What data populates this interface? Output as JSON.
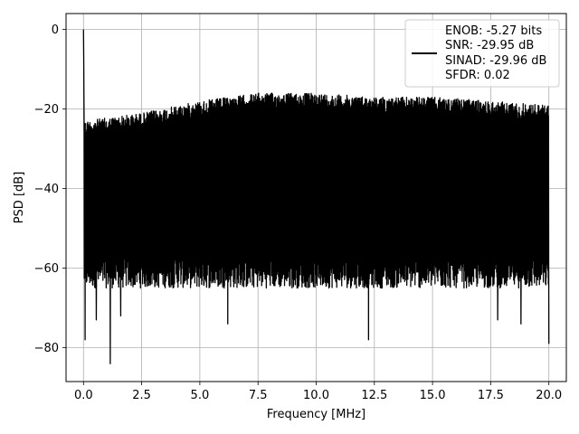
{
  "chart_data": {
    "type": "line",
    "title": "",
    "xlabel": "Frequency [MHz]",
    "ylabel": "PSD [dB]",
    "xlim": [
      -0.75,
      20.75
    ],
    "ylim": [
      -88.5,
      4.0
    ],
    "x_ticks": [
      0.0,
      2.5,
      5.0,
      7.5,
      10.0,
      12.5,
      15.0,
      17.5,
      20.0
    ],
    "x_tick_labels": [
      "0.0",
      "2.5",
      "5.0",
      "7.5",
      "10.0",
      "12.5",
      "15.0",
      "17.5",
      "20.0"
    ],
    "y_ticks": [
      0,
      -20,
      -40,
      -60,
      -80
    ],
    "y_tick_labels": [
      "0",
      "−20",
      "−40",
      "−60",
      "−80"
    ],
    "grid": true,
    "legend_position": "top-right",
    "legend_entries": [
      "ENOB: -5.27 bits",
      "SNR: -29.95 dB",
      "SINAD: -29.96 dB",
      "SFDR: 0.02"
    ],
    "series": [
      {
        "color": "#000000",
        "x_range": [
          0.0,
          20.0
        ],
        "peak": {
          "x": 0.0,
          "y": 0.0
        },
        "noise_ceiling": [
          [
            0.0,
            -23
          ],
          [
            2.5,
            -21
          ],
          [
            5.0,
            -18
          ],
          [
            7.5,
            -16
          ],
          [
            10.0,
            -16
          ],
          [
            12.5,
            -17
          ],
          [
            15.0,
            -17
          ],
          [
            17.5,
            -18
          ],
          [
            20.0,
            -19
          ]
        ],
        "noise_floor_typical": -62,
        "deep_dips": [
          {
            "x": 0.07,
            "y": -78
          },
          {
            "x": 0.55,
            "y": -73
          },
          {
            "x": 1.15,
            "y": -84
          },
          {
            "x": 1.6,
            "y": -72
          },
          {
            "x": 6.2,
            "y": -74
          },
          {
            "x": 12.25,
            "y": -78
          },
          {
            "x": 17.8,
            "y": -73
          },
          {
            "x": 18.8,
            "y": -74
          },
          {
            "x": 20.0,
            "y": -79
          }
        ]
      }
    ]
  }
}
